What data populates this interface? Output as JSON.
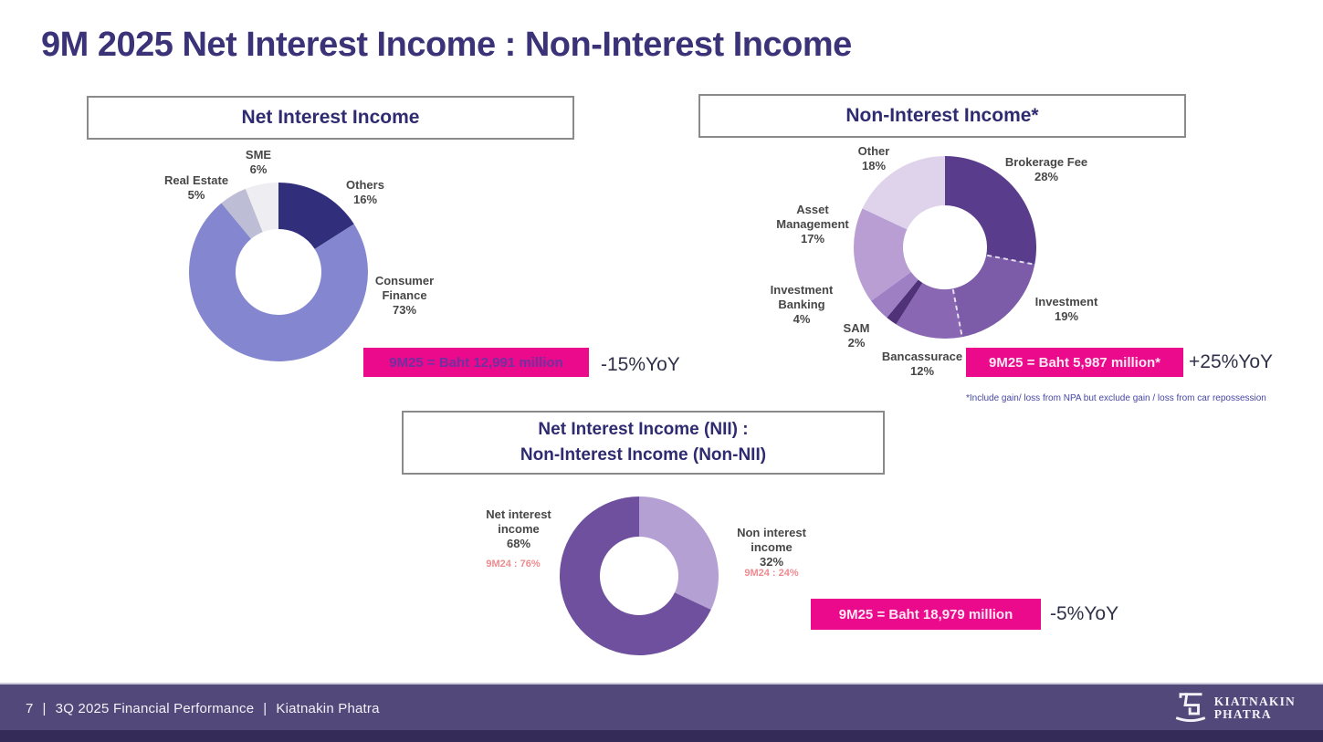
{
  "slide": {
    "title": "9M 2025 Net Interest Income : Non-Interest Income",
    "footnote": "*Include gain/ loss from NPA but exclude gain / loss from car repossession"
  },
  "colors": {
    "accent_pink": "#EB0A8C",
    "title_indigo": "#3B3378",
    "footer_band": "#53487A",
    "footer_strip": "#352B58"
  },
  "chart_data": [
    {
      "type": "pie",
      "variant": "donut",
      "title": "Net Interest Income",
      "total_label": "9M25 = Baht 12,991 million",
      "yoy_label": "-15%YoY",
      "segments": [
        {
          "label": "Others",
          "pct": "16%",
          "value": 16,
          "color": "#312E7C"
        },
        {
          "label": "Consumer Finance",
          "pct": "73%",
          "value": 73,
          "color": "#8487CF"
        },
        {
          "label": "Real Estate",
          "pct": "5%",
          "value": 5,
          "color": "#BDBDD6"
        },
        {
          "label": "SME",
          "pct": "6%",
          "value": 6,
          "color": "#EDEDF2"
        }
      ]
    },
    {
      "type": "pie",
      "variant": "donut",
      "title": "Non-Interest Income*",
      "total_label": "9M25 = Baht 5,987 million*",
      "yoy_label": "+25%YoY",
      "segments": [
        {
          "label": "Brokerage Fee",
          "pct": "28%",
          "value": 28,
          "color": "#5A3C8D"
        },
        {
          "label": "Investment",
          "pct": "19%",
          "value": 19,
          "color": "#7C5CA9",
          "dashed_start": true
        },
        {
          "label": "Bancassurace",
          "pct": "12%",
          "value": 12,
          "color": "#8A67B2",
          "dashed_start": true
        },
        {
          "label": "SAM",
          "pct": "2%",
          "value": 2,
          "color": "#503279"
        },
        {
          "label": "Investment Banking",
          "pct": "4%",
          "value": 4,
          "color": "#9E7FC4"
        },
        {
          "label": "Asset Management",
          "pct": "17%",
          "value": 17,
          "color": "#B99ED4"
        },
        {
          "label": "Other",
          "pct": "18%",
          "value": 18,
          "color": "#DFD3EC"
        }
      ]
    },
    {
      "type": "pie",
      "variant": "donut",
      "title": "Net Interest Income (NII) : Non-Interest Income (Non-NII)",
      "title_lines": [
        "Net Interest Income (NII) :",
        "Non-Interest Income (Non-NII)"
      ],
      "total_label": "9M25 = Baht 18,979 million",
      "yoy_label": "-5%YoY",
      "segments": [
        {
          "label": "Non interest income",
          "pct": "32%",
          "value": 32,
          "color": "#B5A0D4",
          "prior_label": "9M24 : 24%"
        },
        {
          "label": "Net interest income",
          "pct": "68%",
          "value": 68,
          "color": "#6E509E",
          "prior_label": "9M24 : 76%"
        }
      ]
    }
  ],
  "footer": {
    "page_number": "7",
    "separator": "|",
    "title": "3Q 2025 Financial Performance",
    "brand": "Kiatnakin Phatra",
    "logo_line1": "KIATNAKIN",
    "logo_line2": "PHATRA"
  }
}
